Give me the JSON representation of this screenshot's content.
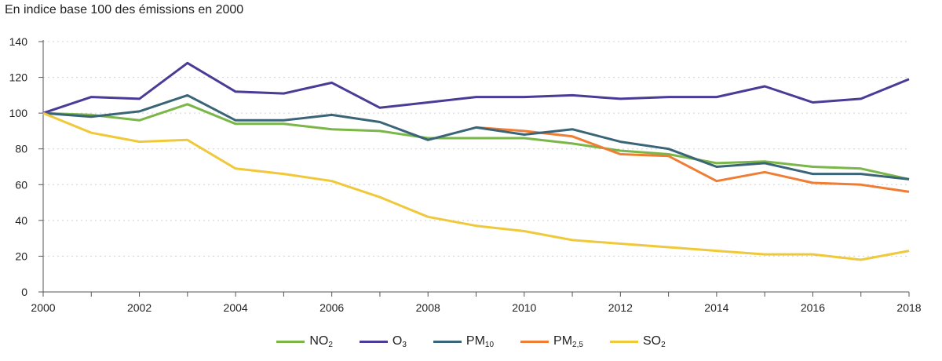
{
  "chart_data": {
    "type": "line",
    "title": "En indice base 100 des émissions en 2000",
    "xlabel": "",
    "ylabel": "",
    "x": [
      2000,
      2001,
      2002,
      2003,
      2004,
      2005,
      2006,
      2007,
      2008,
      2009,
      2010,
      2011,
      2012,
      2013,
      2014,
      2015,
      2016,
      2017,
      2018
    ],
    "xticks": [
      2000,
      2002,
      2004,
      2006,
      2008,
      2010,
      2012,
      2014,
      2016,
      2018
    ],
    "yticks": [
      0,
      20,
      40,
      60,
      80,
      100,
      120,
      140
    ],
    "xlim": [
      2000,
      2018
    ],
    "ylim": [
      0,
      140
    ],
    "grid": "horizontal dotted",
    "legend": "bottom",
    "series": [
      {
        "name": "NO2",
        "label": "NO",
        "sub": "2",
        "color": "#7ab648",
        "values": [
          100,
          99,
          96,
          105,
          94,
          94,
          91,
          90,
          86,
          86,
          86,
          83,
          79,
          77,
          72,
          73,
          70,
          69,
          63
        ]
      },
      {
        "name": "O3",
        "label": "O",
        "sub": "3",
        "color": "#4b3b96",
        "values": [
          100,
          109,
          108,
          128,
          112,
          111,
          117,
          103,
          106,
          109,
          109,
          110,
          108,
          109,
          109,
          115,
          106,
          108,
          119
        ]
      },
      {
        "name": "PM2,5",
        "label": "PM",
        "sub": "2,5",
        "color": "#ef7d33",
        "values": [
          null,
          null,
          null,
          null,
          null,
          null,
          null,
          null,
          null,
          92,
          90,
          87,
          77,
          76,
          62,
          67,
          61,
          60,
          56
        ]
      },
      {
        "name": "PM10",
        "label": "PM",
        "sub": "10",
        "color": "#3a6478",
        "values": [
          100,
          98,
          101,
          110,
          96,
          96,
          99,
          95,
          85,
          92,
          88,
          91,
          84,
          80,
          70,
          72,
          66,
          66,
          63
        ]
      },
      {
        "name": "SO2",
        "label": "SO",
        "sub": "2",
        "color": "#f0c93a",
        "values": [
          100,
          89,
          84,
          85,
          69,
          66,
          62,
          53,
          42,
          37,
          34,
          29,
          27,
          25,
          23,
          21,
          21,
          18,
          23
        ]
      }
    ],
    "legend_order": [
      "NO2",
      "O3",
      "PM10",
      "PM2,5",
      "SO2"
    ]
  }
}
